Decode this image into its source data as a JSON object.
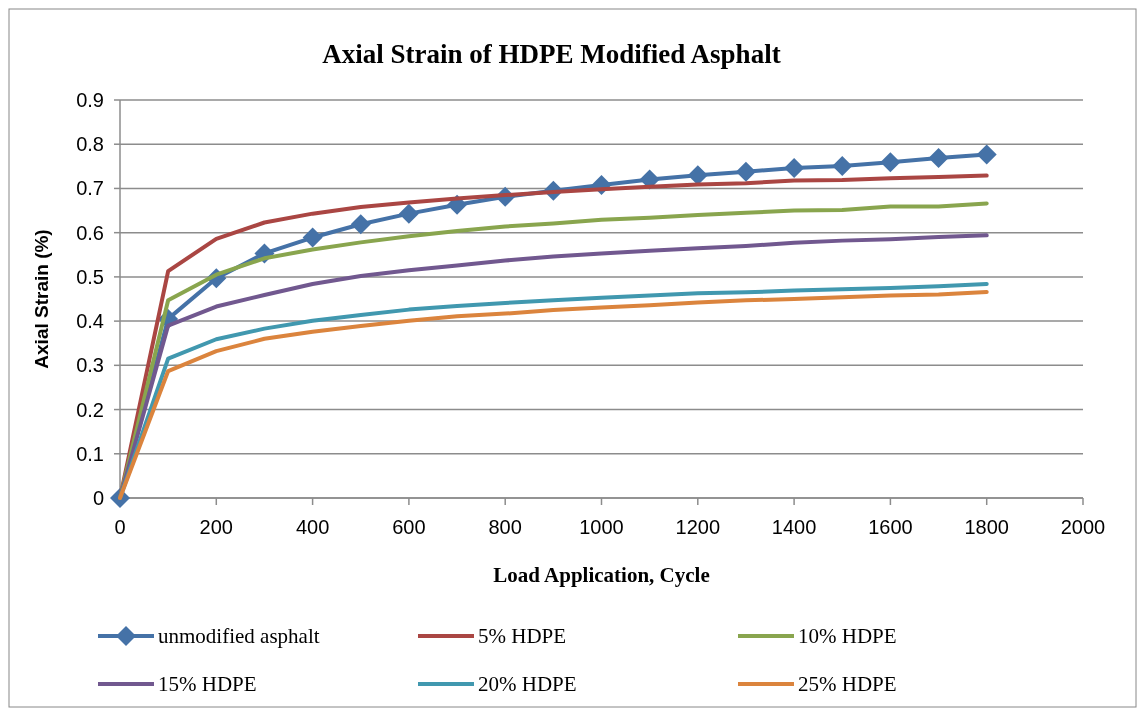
{
  "chart_data": {
    "type": "line",
    "title": "Axial Strain of  HDPE Modified Asphalt",
    "xlabel": "Load Application, Cycle",
    "ylabel": "Axial Strain (%)",
    "x": [
      0,
      100,
      200,
      300,
      400,
      500,
      600,
      700,
      800,
      900,
      1000,
      1100,
      1200,
      1300,
      1400,
      1500,
      1600,
      1700,
      1800
    ],
    "xlim": [
      0,
      2000
    ],
    "xticks": [
      0,
      200,
      400,
      600,
      800,
      1000,
      1200,
      1400,
      1600,
      1800,
      2000
    ],
    "ylim": [
      0,
      0.9
    ],
    "yticks": [
      0,
      0.1,
      0.2,
      0.3,
      0.4,
      0.5,
      0.6,
      0.7,
      0.8,
      0.9
    ],
    "grid": "y",
    "legend": "bottom",
    "line_style": "solid",
    "series": [
      {
        "name": "unmodified asphalt",
        "color": "#4572a7",
        "marker": "diamond",
        "values": [
          0,
          0.405,
          0.497,
          0.553,
          0.589,
          0.619,
          0.643,
          0.663,
          0.681,
          0.695,
          0.708,
          0.72,
          0.73,
          0.738,
          0.746,
          0.751,
          0.759,
          0.769,
          0.777
        ]
      },
      {
        "name": "5% HDPE",
        "color": "#aa4643",
        "marker": "none",
        "values": [
          0,
          0.513,
          0.586,
          0.623,
          0.643,
          0.658,
          0.668,
          0.677,
          0.685,
          0.692,
          0.698,
          0.704,
          0.709,
          0.712,
          0.718,
          0.719,
          0.723,
          0.726,
          0.729
        ]
      },
      {
        "name": "10% HDPE",
        "color": "#89a54e",
        "marker": "none",
        "values": [
          0,
          0.447,
          0.505,
          0.542,
          0.562,
          0.578,
          0.592,
          0.604,
          0.614,
          0.621,
          0.629,
          0.634,
          0.64,
          0.645,
          0.65,
          0.651,
          0.659,
          0.659,
          0.666
        ]
      },
      {
        "name": "15% HDPE",
        "color": "#71588f",
        "marker": "none",
        "values": [
          0,
          0.39,
          0.433,
          0.459,
          0.484,
          0.502,
          0.515,
          0.526,
          0.537,
          0.546,
          0.553,
          0.559,
          0.565,
          0.57,
          0.577,
          0.582,
          0.585,
          0.59,
          0.594
        ]
      },
      {
        "name": "20% HDPE",
        "color": "#4198af",
        "marker": "none",
        "values": [
          0,
          0.315,
          0.359,
          0.383,
          0.401,
          0.414,
          0.426,
          0.434,
          0.441,
          0.447,
          0.453,
          0.458,
          0.463,
          0.465,
          0.469,
          0.472,
          0.475,
          0.479,
          0.484
        ]
      },
      {
        "name": "25% HDPE",
        "color": "#db843d",
        "marker": "none",
        "values": [
          0,
          0.287,
          0.332,
          0.36,
          0.376,
          0.389,
          0.401,
          0.411,
          0.417,
          0.425,
          0.431,
          0.436,
          0.442,
          0.447,
          0.45,
          0.454,
          0.458,
          0.46,
          0.466
        ]
      }
    ]
  }
}
